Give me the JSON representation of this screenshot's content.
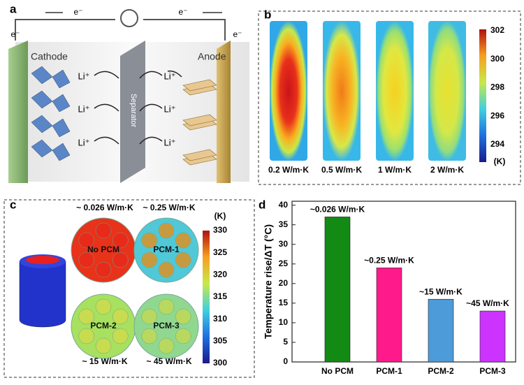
{
  "panel_a": {
    "label": "a",
    "electrons": [
      "e⁻",
      "e⁻",
      "e⁻",
      "e⁻"
    ],
    "cathode": "Cathode",
    "anode": "Anode",
    "separator": "Separator",
    "ions": [
      "Li⁺",
      "Li⁺",
      "Li⁺",
      "Li⁺",
      "Li⁺",
      "Li⁺"
    ]
  },
  "panel_b": {
    "label": "b",
    "conditions": [
      "0.2 W/m·K",
      "0.5 W/m·K",
      "1 W/m·K",
      "2 W/m·K"
    ],
    "colorbar_ticks": [
      302,
      300,
      298,
      296,
      294
    ],
    "colorbar_unit": "(K)"
  },
  "panel_c": {
    "label": "c",
    "conductivities": [
      "~ 0.026 W/m·K",
      "~ 0.25 W/m·K",
      "~ 15 W/m·K",
      "~ 45 W/m·K"
    ],
    "names": [
      "No PCM",
      "PCM-1",
      "PCM-2",
      "PCM-3"
    ],
    "colorbar_ticks": [
      330,
      325,
      320,
      315,
      310,
      305,
      300
    ],
    "colorbar_unit": "(K)"
  },
  "chart_data": {
    "type": "bar",
    "label": "d",
    "ylabel": "Temperature rise/ΔT (°C)",
    "categories": [
      "No PCM",
      "PCM-1",
      "PCM-2",
      "PCM-3"
    ],
    "values": [
      37,
      24,
      16,
      13
    ],
    "colors": [
      "#138a13",
      "#ff1a8c",
      "#4d9bd9",
      "#cc33ff"
    ],
    "annotations": [
      "~0.026 W/m·K",
      "~0.25 W/m·K",
      "~15 W/m·K",
      "~45 W/m·K"
    ],
    "ylim": [
      0,
      41
    ],
    "yticks": [
      0,
      5,
      10,
      15,
      20,
      25,
      30,
      35,
      40
    ]
  }
}
